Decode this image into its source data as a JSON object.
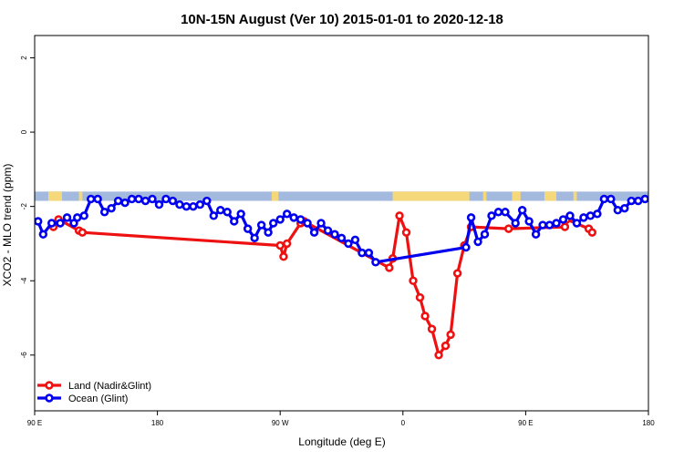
{
  "chart_data": {
    "type": "line",
    "title": "10N-15N August (Ver 10)   2015-01-01 to 2020-12-18",
    "xlabel": "Longitude (deg E)",
    "ylabel": "XCO2 - MLO trend (ppm)",
    "xlim": [
      90,
      450
    ],
    "ylim": [
      -7.5,
      2.6
    ],
    "x_ticks": [
      {
        "value": 90,
        "label": "90 E"
      },
      {
        "value": 162,
        "label": "180"
      },
      {
        "value": 234,
        "label": "90 W"
      },
      {
        "value": 306,
        "label": "0"
      },
      {
        "value": 378,
        "label": "90 E"
      },
      {
        "value": 450,
        "label": "180"
      }
    ],
    "y_ticks": [
      {
        "value": 2,
        "label": "2"
      },
      {
        "value": 0,
        "label": "0"
      },
      {
        "value": -2,
        "label": "-2"
      },
      {
        "value": -4,
        "label": "-4"
      },
      {
        "value": -6,
        "label": "-6"
      }
    ],
    "legend_position": "bottom-left",
    "grid": false,
    "land_mask_band": {
      "y_range": [
        -1.85,
        -1.6
      ],
      "ocean_color": "#a4b9de",
      "land_color": "#f5d87a",
      "land_segments": [
        [
          98,
          106
        ],
        [
          116,
          118
        ],
        [
          229,
          233
        ],
        [
          300,
          345
        ],
        [
          353,
          355
        ],
        [
          370,
          375
        ],
        [
          389,
          396
        ],
        [
          406,
          408
        ]
      ]
    },
    "series": [
      {
        "name": "Land (Nadir&Glint)",
        "color": "#ee1111",
        "points": [
          [
            101,
            -2.55
          ],
          [
            104,
            -2.35
          ],
          [
            116,
            -2.65
          ],
          [
            118,
            -2.7
          ],
          [
            234,
            -3.05
          ],
          [
            236,
            -3.35
          ],
          [
            238,
            -3.0
          ],
          [
            246,
            -2.45
          ],
          [
            248,
            -2.4
          ],
          [
            298,
            -3.65
          ],
          [
            300,
            -3.4
          ],
          [
            304,
            -2.25
          ],
          [
            308,
            -2.7
          ],
          [
            312,
            -4.0
          ],
          [
            316,
            -4.45
          ],
          [
            319,
            -4.95
          ],
          [
            323,
            -5.3
          ],
          [
            327,
            -6.0
          ],
          [
            331,
            -5.75
          ],
          [
            334,
            -5.45
          ],
          [
            338,
            -3.8
          ],
          [
            342,
            -3.05
          ],
          [
            346,
            -2.55
          ],
          [
            368,
            -2.6
          ],
          [
            401,
            -2.55
          ],
          [
            402,
            -2.35
          ],
          [
            415,
            -2.6
          ],
          [
            417,
            -2.7
          ]
        ]
      },
      {
        "name": "Ocean (Glint)",
        "color": "#0000ee",
        "points": [
          [
            92,
            -2.4
          ],
          [
            95,
            -2.75
          ],
          [
            100,
            -2.45
          ],
          [
            105,
            -2.45
          ],
          [
            109,
            -2.3
          ],
          [
            113,
            -2.45
          ],
          [
            115,
            -2.3
          ],
          [
            119,
            -2.25
          ],
          [
            123,
            -1.8
          ],
          [
            127,
            -1.8
          ],
          [
            131,
            -2.15
          ],
          [
            135,
            -2.05
          ],
          [
            139,
            -1.85
          ],
          [
            143,
            -1.9
          ],
          [
            147,
            -1.8
          ],
          [
            151,
            -1.8
          ],
          [
            155,
            -1.85
          ],
          [
            159,
            -1.8
          ],
          [
            163,
            -1.95
          ],
          [
            167,
            -1.8
          ],
          [
            171,
            -1.85
          ],
          [
            175,
            -1.95
          ],
          [
            179,
            -2.0
          ],
          [
            183,
            -2.0
          ],
          [
            187,
            -1.95
          ],
          [
            191,
            -1.85
          ],
          [
            195,
            -2.25
          ],
          [
            199,
            -2.1
          ],
          [
            203,
            -2.15
          ],
          [
            207,
            -2.4
          ],
          [
            211,
            -2.2
          ],
          [
            215,
            -2.6
          ],
          [
            219,
            -2.85
          ],
          [
            223,
            -2.5
          ],
          [
            227,
            -2.7
          ],
          [
            230,
            -2.45
          ],
          [
            234,
            -2.35
          ],
          [
            238,
            -2.2
          ],
          [
            242,
            -2.3
          ],
          [
            246,
            -2.35
          ],
          [
            250,
            -2.45
          ],
          [
            254,
            -2.7
          ],
          [
            258,
            -2.45
          ],
          [
            262,
            -2.65
          ],
          [
            266,
            -2.75
          ],
          [
            270,
            -2.85
          ],
          [
            274,
            -3.0
          ],
          [
            278,
            -2.9
          ],
          [
            282,
            -3.25
          ],
          [
            286,
            -3.25
          ],
          [
            290,
            -3.5
          ],
          [
            343,
            -3.1
          ],
          [
            346,
            -2.3
          ],
          [
            350,
            -2.95
          ],
          [
            354,
            -2.75
          ],
          [
            358,
            -2.25
          ],
          [
            362,
            -2.15
          ],
          [
            366,
            -2.15
          ],
          [
            372,
            -2.45
          ],
          [
            376,
            -2.1
          ],
          [
            380,
            -2.4
          ],
          [
            384,
            -2.75
          ],
          [
            388,
            -2.5
          ],
          [
            392,
            -2.5
          ],
          [
            396,
            -2.45
          ],
          [
            400,
            -2.35
          ],
          [
            404,
            -2.25
          ],
          [
            408,
            -2.45
          ],
          [
            412,
            -2.3
          ],
          [
            416,
            -2.25
          ],
          [
            420,
            -2.2
          ],
          [
            424,
            -1.8
          ],
          [
            428,
            -1.8
          ],
          [
            432,
            -2.1
          ],
          [
            436,
            -2.05
          ],
          [
            440,
            -1.85
          ],
          [
            444,
            -1.85
          ],
          [
            448,
            -1.8
          ],
          [
            452,
            -1.85
          ]
        ]
      }
    ]
  }
}
